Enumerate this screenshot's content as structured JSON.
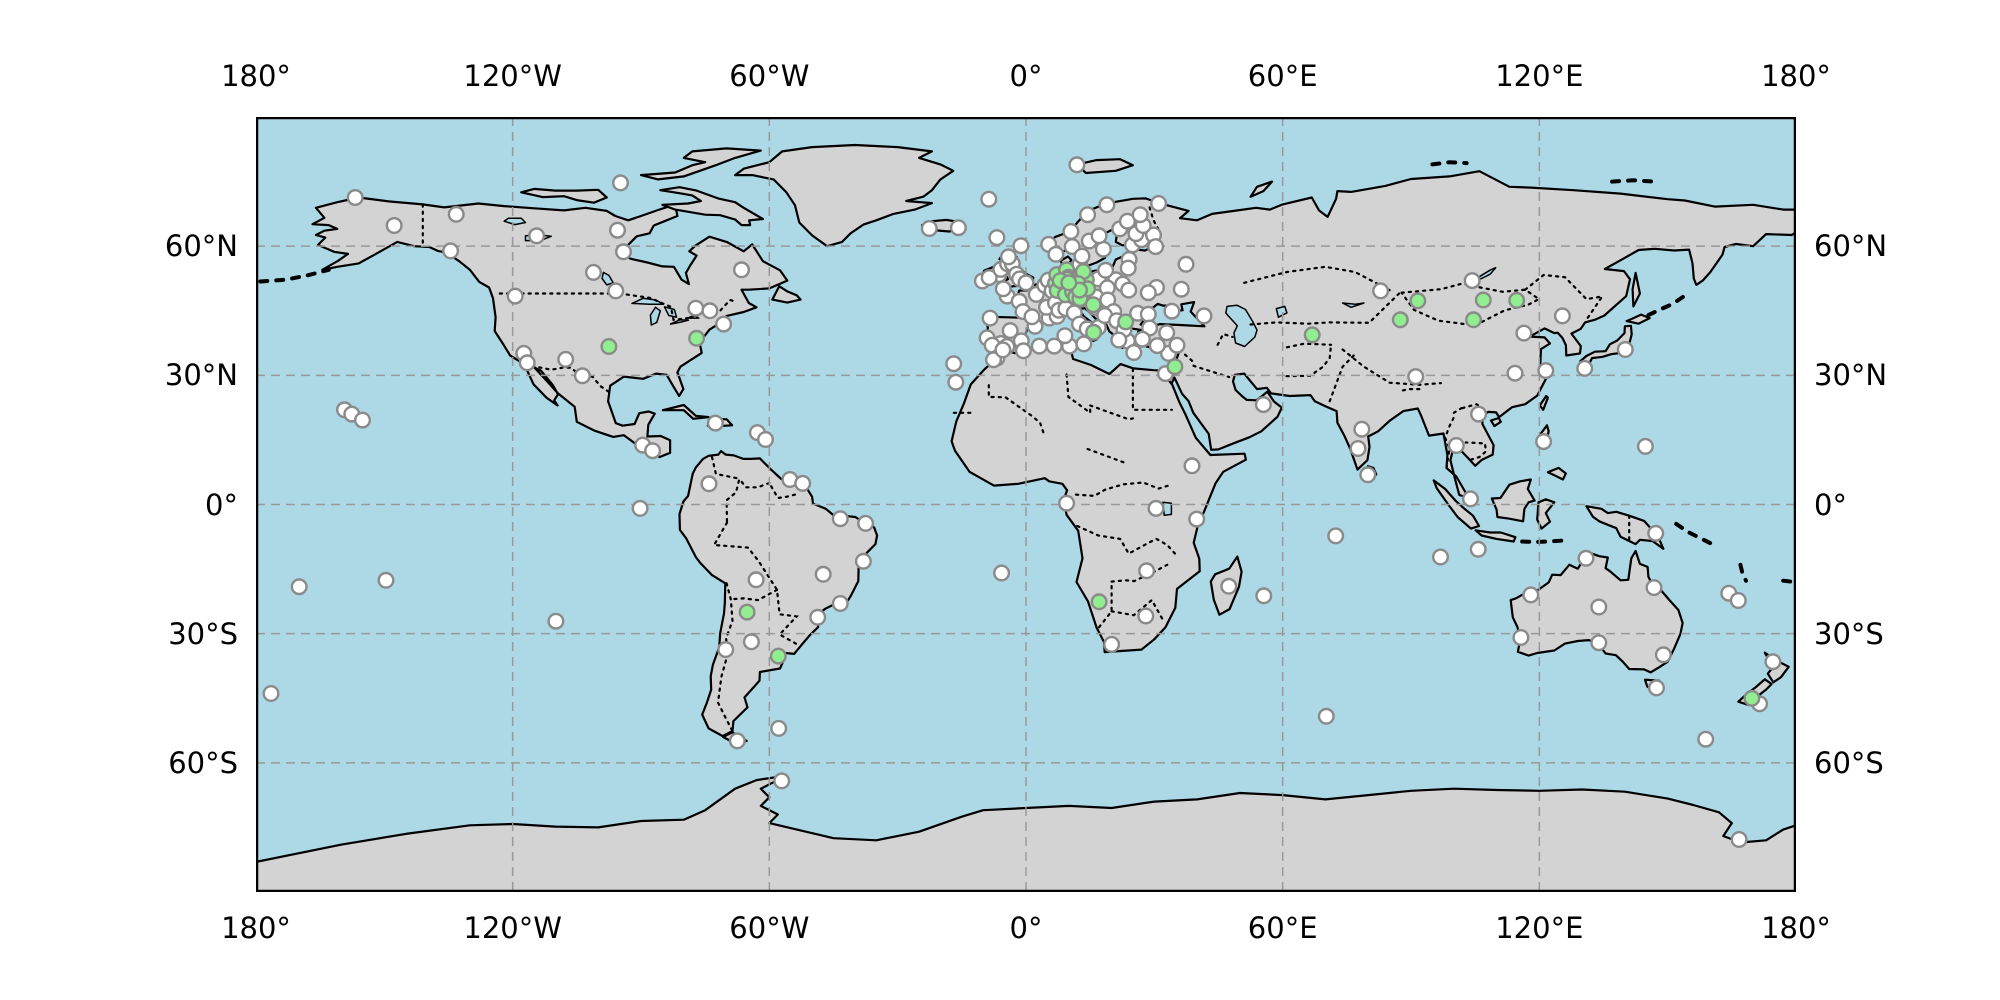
{
  "map": {
    "projection": "PlateCarree (equirectangular)",
    "extent_lonlat": [
      -180,
      180,
      -90,
      90
    ],
    "gridlines": {
      "meridians": [
        -120,
        -60,
        0,
        60,
        120
      ],
      "parallels": [
        60,
        30,
        0,
        -30,
        -60
      ],
      "style": "dashed"
    },
    "axis_labels": {
      "top": [
        "180°",
        "120°W",
        "60°W",
        "0°",
        "60°E",
        "120°E",
        "180°"
      ],
      "bottom": [
        "180°",
        "120°W",
        "60°W",
        "0°",
        "60°E",
        "120°E",
        "180°"
      ],
      "left": [
        "60°N",
        "30°N",
        "0°",
        "30°S",
        "60°S"
      ],
      "right": [
        "60°N",
        "30°N",
        "0°",
        "30°S",
        "60°S"
      ]
    },
    "colors": {
      "ocean": "#ADD8E6",
      "land": "#D3D3D3",
      "coastline": "#000000",
      "country_border": "#000000",
      "gridline": "#999999",
      "marker_edge": "#8A8A8A",
      "white_marker": "#FFFFFF",
      "green_marker": "#90EE90",
      "frame": "#000000",
      "background": "#FFFFFF"
    }
  },
  "chart_data": {
    "type": "scatter",
    "title": "",
    "xlabel": "",
    "ylabel": "",
    "x_range": [
      -180,
      180
    ],
    "y_range": [
      -90,
      90
    ],
    "legend": "none",
    "series": [
      {
        "name": "white-stations",
        "marker": "circle",
        "fill": "#FFFFFF",
        "edge": "#8A8A8A",
        "points_lonlat": [
          [
            -156.8,
            71.3
          ],
          [
            -147.7,
            64.8
          ],
          [
            -133.2,
            67.4
          ],
          [
            -134.5,
            58.9
          ],
          [
            -114.4,
            62.4
          ],
          [
            -94.8,
            74.7
          ],
          [
            -95.5,
            63.7
          ],
          [
            -94.1,
            58.7
          ],
          [
            -101.1,
            53.9
          ],
          [
            -66.5,
            54.5
          ],
          [
            -119.4,
            48.4
          ],
          [
            -95.9,
            49.6
          ],
          [
            -77.2,
            45.6
          ],
          [
            -73.9,
            45.0
          ],
          [
            -70.7,
            41.9
          ],
          [
            -117.4,
            35.1
          ],
          [
            -116.6,
            32.9
          ],
          [
            -107.6,
            33.7
          ],
          [
            -103.7,
            29.9
          ],
          [
            -89.6,
            13.8
          ],
          [
            -87.3,
            12.5
          ],
          [
            -72.6,
            18.9
          ],
          [
            -62.8,
            16.7
          ],
          [
            -60.9,
            15.1
          ],
          [
            -159.3,
            22.0
          ],
          [
            -157.6,
            21.0
          ],
          [
            -155.1,
            19.6
          ],
          [
            -169.9,
            -19.1
          ],
          [
            -149.6,
            -17.6
          ],
          [
            -109.9,
            -27.1
          ],
          [
            -176.5,
            -43.9
          ],
          [
            -74.1,
            4.8
          ],
          [
            -55.2,
            5.8
          ],
          [
            -52.2,
            4.9
          ],
          [
            -90.2,
            -0.9
          ],
          [
            -43.4,
            -3.3
          ],
          [
            -37.5,
            -4.4
          ],
          [
            -38.0,
            -13.2
          ],
          [
            -63.1,
            -17.5
          ],
          [
            -47.4,
            -16.2
          ],
          [
            -43.4,
            -23.0
          ],
          [
            -48.7,
            -26.2
          ],
          [
            -64.2,
            -31.9
          ],
          [
            -70.2,
            -33.7
          ],
          [
            -57.8,
            -52.0
          ],
          [
            -67.5,
            -54.9
          ],
          [
            -57.1,
            -64.2
          ],
          [
            -5.7,
            -15.9
          ],
          [
            -16.9,
            32.7
          ],
          [
            -16.4,
            28.4
          ],
          [
            33.3,
            35.1
          ],
          [
            32.6,
            30.4
          ],
          [
            55.5,
            23.2
          ],
          [
            38.8,
            9.0
          ],
          [
            9.5,
            0.3
          ],
          [
            30.4,
            -0.9
          ],
          [
            39.9,
            -3.4
          ],
          [
            28.2,
            -15.4
          ],
          [
            47.4,
            -19.0
          ],
          [
            55.6,
            -21.2
          ],
          [
            28.0,
            -25.9
          ],
          [
            20.0,
            -32.5
          ],
          [
            72.4,
            -7.3
          ],
          [
            70.2,
            -49.2
          ],
          [
            78.5,
            17.5
          ],
          [
            77.6,
            13.0
          ],
          [
            79.9,
            6.9
          ],
          [
            91.1,
            29.7
          ],
          [
            104.3,
            52.0
          ],
          [
            82.9,
            49.6
          ],
          [
            125.4,
            43.8
          ],
          [
            116.4,
            39.8
          ],
          [
            121.5,
            31.1
          ],
          [
            114.3,
            30.5
          ],
          [
            140.1,
            36.0
          ],
          [
            130.6,
            31.6
          ],
          [
            105.8,
            21.0
          ],
          [
            100.6,
            13.7
          ],
          [
            121.0,
            14.6
          ],
          [
            144.8,
            13.5
          ],
          [
            103.9,
            1.3
          ],
          [
            96.9,
            -12.2
          ],
          [
            105.7,
            -10.4
          ],
          [
            147.2,
            -6.7
          ],
          [
            146.8,
            -19.3
          ],
          [
            130.9,
            -12.5
          ],
          [
            118.0,
            -21.0
          ],
          [
            133.9,
            -23.8
          ],
          [
            115.7,
            -30.9
          ],
          [
            133.9,
            -32.1
          ],
          [
            149.0,
            -34.9
          ],
          [
            147.4,
            -42.6
          ],
          [
            164.3,
            -20.6
          ],
          [
            166.5,
            -22.3
          ],
          [
            174.6,
            -36.5
          ],
          [
            171.5,
            -46.3
          ],
          [
            158.9,
            -54.5
          ],
          [
            166.7,
            -77.8
          ],
          [
            -9.1,
            38.7
          ],
          [
            -8.4,
            43.3
          ],
          [
            -5.9,
            37.4
          ],
          [
            -3.7,
            40.4
          ],
          [
            -1.1,
            38.0
          ],
          [
            2.1,
            41.4
          ],
          [
            -4.5,
            36.7
          ],
          [
            -7.9,
            37.0
          ],
          [
            -6.8,
            34.0
          ],
          [
            -7.6,
            33.6
          ],
          [
            -5.4,
            35.9
          ],
          [
            -0.6,
            35.7
          ],
          [
            3.1,
            36.8
          ],
          [
            10.2,
            36.8
          ],
          [
            6.6,
            36.8
          ],
          [
            -4.4,
            48.4
          ],
          [
            -1.6,
            47.2
          ],
          [
            -0.7,
            44.8
          ],
          [
            1.4,
            43.6
          ],
          [
            5.4,
            43.3
          ],
          [
            7.3,
            43.7
          ],
          [
            2.4,
            48.8
          ],
          [
            4.8,
            45.8
          ],
          [
            -10.2,
            51.9
          ],
          [
            -6.3,
            53.4
          ],
          [
            -8.6,
            52.7
          ],
          [
            -5.9,
            54.6
          ],
          [
            -4.3,
            55.9
          ],
          [
            -3.2,
            55.9
          ],
          [
            -4.1,
            57.5
          ],
          [
            -1.2,
            60.1
          ],
          [
            -2.2,
            53.5
          ],
          [
            -1.5,
            52.4
          ],
          [
            0.0,
            51.5
          ],
          [
            -5.3,
            50.1
          ],
          [
            4.4,
            50.9
          ],
          [
            5.2,
            52.1
          ],
          [
            6.1,
            49.6
          ],
          [
            8.6,
            47.4
          ],
          [
            6.9,
            46.8
          ],
          [
            11.4,
            47.3
          ],
          [
            16.4,
            48.2
          ],
          [
            13.0,
            47.8
          ],
          [
            7.7,
            45.1
          ],
          [
            9.3,
            45.5
          ],
          [
            11.3,
            44.5
          ],
          [
            12.5,
            41.9
          ],
          [
            14.3,
            40.8
          ],
          [
            16.9,
            41.1
          ],
          [
            9.1,
            39.2
          ],
          [
            13.5,
            37.3
          ],
          [
            5.3,
            60.4
          ],
          [
            10.8,
            59.9
          ],
          [
            7.0,
            58.1
          ],
          [
            12.6,
            55.7
          ],
          [
            13.1,
            57.7
          ],
          [
            18.1,
            59.3
          ],
          [
            14.8,
            61.2
          ],
          [
            17.1,
            62.4
          ],
          [
            21.9,
            64.0
          ],
          [
            24.9,
            60.3
          ],
          [
            27.0,
            61.5
          ],
          [
            29.8,
            62.6
          ],
          [
            25.7,
            62.9
          ],
          [
            27.4,
            64.8
          ],
          [
            10.5,
            63.4
          ],
          [
            14.4,
            67.3
          ],
          [
            23.7,
            65.8
          ],
          [
            24.1,
            56.9
          ],
          [
            23.9,
            54.9
          ],
          [
            21.0,
            52.2
          ],
          [
            16.9,
            52.4
          ],
          [
            18.6,
            54.4
          ],
          [
            19.0,
            50.3
          ],
          [
            22.6,
            51.2
          ],
          [
            19.1,
            47.5
          ],
          [
            20.5,
            44.8
          ],
          [
            16.0,
            45.8
          ],
          [
            18.4,
            43.9
          ],
          [
            21.2,
            42.7
          ],
          [
            26.1,
            44.4
          ],
          [
            28.6,
            44.2
          ],
          [
            23.7,
            38.0
          ],
          [
            22.9,
            40.6
          ],
          [
            21.7,
            38.2
          ],
          [
            25.2,
            35.3
          ],
          [
            28.9,
            41.0
          ],
          [
            32.9,
            39.9
          ],
          [
            27.2,
            38.4
          ],
          [
            30.7,
            36.9
          ],
          [
            35.3,
            37.0
          ],
          [
            30.5,
            50.4
          ],
          [
            24.0,
            49.8
          ],
          [
            28.6,
            49.2
          ],
          [
            34.1,
            44.9
          ],
          [
            36.3,
            50.0
          ],
          [
            30.3,
            59.9
          ],
          [
            37.4,
            55.8
          ],
          [
            41.6,
            43.8
          ],
          [
            31.0,
            69.9
          ],
          [
            18.9,
            69.6
          ],
          [
            26.7,
            67.3
          ],
          [
            11.9,
            78.9
          ],
          [
            -6.8,
            62.0
          ],
          [
            -22.6,
            64.1
          ],
          [
            -15.8,
            64.3
          ],
          [
            -8.7,
            70.9
          ]
        ]
      },
      {
        "name": "green-stations",
        "marker": "circle",
        "fill": "#90EE90",
        "edge": "#8A8A8A",
        "points_lonlat": [
          [
            -97.5,
            36.7
          ],
          [
            -77.0,
            38.6
          ],
          [
            -65.2,
            -25.0
          ],
          [
            -57.9,
            -35.2
          ],
          [
            17.1,
            -22.6
          ],
          [
            34.8,
            32.0
          ],
          [
            66.9,
            39.4
          ],
          [
            91.6,
            47.3
          ],
          [
            106.9,
            47.5
          ],
          [
            114.7,
            47.4
          ],
          [
            87.5,
            42.9
          ],
          [
            104.6,
            42.9
          ],
          [
            169.7,
            -45.0
          ],
          [
            23.3,
            42.4
          ],
          [
            15.7,
            46.4
          ],
          [
            15.8,
            40.0
          ],
          [
            6.9,
            51.4
          ],
          [
            7.2,
            53.4
          ],
          [
            9.5,
            54.5
          ],
          [
            9.9,
            52.8
          ],
          [
            9.7,
            52.3
          ],
          [
            8.8,
            50.1
          ],
          [
            10.4,
            50.6
          ],
          [
            7.3,
            49.7
          ],
          [
            9.2,
            48.7
          ],
          [
            10.9,
            49.4
          ],
          [
            11.6,
            48.2
          ],
          [
            12.6,
            47.8
          ],
          [
            13.7,
            51.1
          ],
          [
            14.1,
            52.2
          ],
          [
            13.4,
            54.1
          ],
          [
            12.2,
            51.3
          ],
          [
            14.4,
            50.1
          ],
          [
            8.0,
            52.0
          ],
          [
            12.5,
            49.8
          ],
          [
            10.0,
            51.5
          ]
        ]
      }
    ]
  }
}
